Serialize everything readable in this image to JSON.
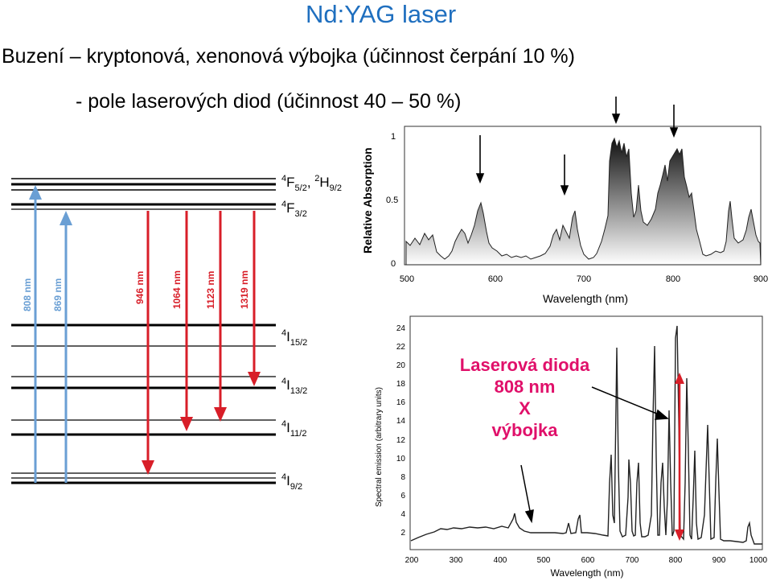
{
  "title": "Nd:YAG laser",
  "line1": "Buzení – kryptonová, xenonová výbojka (účinnost čerpání 10 %)",
  "line2": "- pole laserových diod (účinnost 40 – 50 %)",
  "energy_levels": [
    {
      "main": "F",
      "sup": "4",
      "sub": "5/2",
      "extra": ", ",
      "main2": "H",
      "sup2": "2",
      "sub2": "9/2"
    },
    {
      "main": "F",
      "sup": "4",
      "sub": "3/2"
    },
    {
      "main": "I",
      "sup": "4",
      "sub": "15/2"
    },
    {
      "main": "I",
      "sup": "4",
      "sub": "13/2"
    },
    {
      "main": "I",
      "sup": "4",
      "sub": "11/2"
    },
    {
      "main": "I",
      "sup": "4",
      "sub": "9/2"
    }
  ],
  "transitions": {
    "pump": [
      "808 nm",
      "869 nm"
    ],
    "emission": [
      "946 nm",
      "1064 nm",
      "1123 nm",
      "1319 nm"
    ],
    "pump_color": "#6a9fd4",
    "emission_color": "#d81e28"
  },
  "absorption": {
    "ylabel": "Relative Absorption",
    "xlabel": "Wavelength (nm)",
    "yticks": [
      "0",
      "0.5",
      "1"
    ],
    "xticks": [
      "500",
      "600",
      "700",
      "800",
      "900"
    ]
  },
  "emission": {
    "ylabel": "Spectral emission (arbitrary units)",
    "xlabel": "Wavelength (nm)",
    "yticks": [
      "2",
      "4",
      "6",
      "8",
      "10",
      "12",
      "14",
      "16",
      "18",
      "20",
      "22",
      "24"
    ],
    "xticks": [
      "200",
      "300",
      "400",
      "500",
      "600",
      "700",
      "800",
      "900",
      "1000"
    ]
  },
  "annotation": [
    "Laserová dioda",
    "808 nm",
    "X",
    "výbojka"
  ],
  "annotation_color": "#e0106a"
}
